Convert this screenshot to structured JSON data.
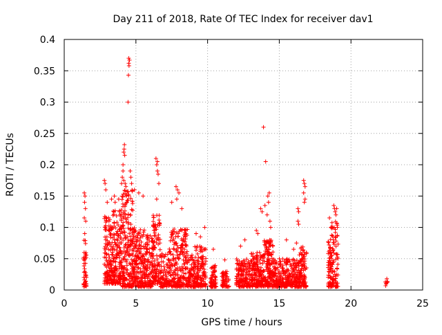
{
  "chart_data": {
    "type": "scatter",
    "title": "Day 211 of 2018, Rate Of TEC Index for receiver dav1",
    "xlabel": "GPS time / hours",
    "ylabel": "ROTI / TECUs",
    "xlim": [
      0,
      25
    ],
    "ylim": [
      0,
      0.4
    ],
    "x_ticks": [
      "0",
      "5",
      "10",
      "15",
      "20",
      "25"
    ],
    "y_ticks": [
      "0",
      "0.05",
      "0.1",
      "0.15",
      "0.2",
      "0.25",
      "0.3",
      "0.35",
      "0.4"
    ],
    "grid": true,
    "marker": "+",
    "colors": {
      "points": "#ff0000",
      "grid": "#a0a0a0",
      "axis": "#000000"
    },
    "clusters": [
      {
        "x": [
          1.35,
          1.55
        ],
        "ymin": 0.005,
        "ymax": 0.08,
        "count": 40
      },
      {
        "x": [
          2.8,
          3.4
        ],
        "ymin": 0.01,
        "ymax": 0.12,
        "count": 140
      },
      {
        "x": [
          3.4,
          4.0
        ],
        "ymin": 0.01,
        "ymax": 0.13,
        "count": 150
      },
      {
        "x": [
          4.0,
          4.8
        ],
        "ymin": 0.005,
        "ymax": 0.16,
        "count": 210
      },
      {
        "x": [
          4.8,
          5.6
        ],
        "ymin": 0.005,
        "ymax": 0.1,
        "count": 170
      },
      {
        "x": [
          5.6,
          6.2
        ],
        "ymin": 0.005,
        "ymax": 0.09,
        "count": 120
      },
      {
        "x": [
          6.2,
          6.7
        ],
        "ymin": 0.01,
        "ymax": 0.12,
        "count": 100
      },
      {
        "x": [
          6.7,
          7.3
        ],
        "ymin": 0.005,
        "ymax": 0.06,
        "count": 80
      },
      {
        "x": [
          7.3,
          8.6
        ],
        "ymin": 0.005,
        "ymax": 0.1,
        "count": 230
      },
      {
        "x": [
          8.6,
          9.0
        ],
        "ymin": 0.005,
        "ymax": 0.06,
        "count": 60
      },
      {
        "x": [
          9.0,
          9.9
        ],
        "ymin": 0.005,
        "ymax": 0.07,
        "count": 150
      },
      {
        "x": [
          10.2,
          10.6
        ],
        "ymin": 0.005,
        "ymax": 0.04,
        "count": 60
      },
      {
        "x": [
          11.0,
          11.5
        ],
        "ymin": 0.005,
        "ymax": 0.03,
        "count": 50
      },
      {
        "x": [
          12.0,
          13.0
        ],
        "ymin": 0.005,
        "ymax": 0.05,
        "count": 150
      },
      {
        "x": [
          13.0,
          13.9
        ],
        "ymin": 0.005,
        "ymax": 0.06,
        "count": 160
      },
      {
        "x": [
          13.9,
          14.6
        ],
        "ymin": 0.005,
        "ymax": 0.08,
        "count": 150
      },
      {
        "x": [
          14.6,
          15.6
        ],
        "ymin": 0.005,
        "ymax": 0.05,
        "count": 160
      },
      {
        "x": [
          15.6,
          16.4
        ],
        "ymin": 0.005,
        "ymax": 0.05,
        "count": 120
      },
      {
        "x": [
          16.4,
          16.9
        ],
        "ymin": 0.005,
        "ymax": 0.07,
        "count": 90
      },
      {
        "x": [
          18.4,
          18.6
        ],
        "ymin": 0.005,
        "ymax": 0.09,
        "count": 50
      },
      {
        "x": [
          18.6,
          19.1
        ],
        "ymin": 0.005,
        "ymax": 0.11,
        "count": 90
      },
      {
        "x": [
          22.4,
          22.6
        ],
        "ymin": 0.005,
        "ymax": 0.014,
        "count": 6
      }
    ],
    "points": [
      [
        1.4,
        0.155
      ],
      [
        1.45,
        0.15
      ],
      [
        1.42,
        0.14
      ],
      [
        1.48,
        0.13
      ],
      [
        1.4,
        0.115
      ],
      [
        1.5,
        0.11
      ],
      [
        1.43,
        0.09
      ],
      [
        2.8,
        0.175
      ],
      [
        2.85,
        0.17
      ],
      [
        2.9,
        0.16
      ],
      [
        3.0,
        0.14
      ],
      [
        3.3,
        0.145
      ],
      [
        3.5,
        0.15
      ],
      [
        3.55,
        0.14
      ],
      [
        3.8,
        0.145
      ],
      [
        4.0,
        0.17
      ],
      [
        4.05,
        0.18
      ],
      [
        4.1,
        0.2
      ],
      [
        4.15,
        0.22
      ],
      [
        4.2,
        0.232
      ],
      [
        4.18,
        0.225
      ],
      [
        4.22,
        0.215
      ],
      [
        4.1,
        0.19
      ],
      [
        4.15,
        0.175
      ],
      [
        4.25,
        0.17
      ],
      [
        4.3,
        0.165
      ],
      [
        4.5,
        0.37
      ],
      [
        4.55,
        0.367
      ],
      [
        4.5,
        0.362
      ],
      [
        4.52,
        0.358
      ],
      [
        4.48,
        0.343
      ],
      [
        4.45,
        0.3
      ],
      [
        4.6,
        0.19
      ],
      [
        4.65,
        0.18
      ],
      [
        4.7,
        0.17
      ],
      [
        4.9,
        0.16
      ],
      [
        5.2,
        0.155
      ],
      [
        5.5,
        0.15
      ],
      [
        6.4,
        0.21
      ],
      [
        6.5,
        0.205
      ],
      [
        6.45,
        0.2
      ],
      [
        6.5,
        0.19
      ],
      [
        6.55,
        0.185
      ],
      [
        6.6,
        0.17
      ],
      [
        6.45,
        0.145
      ],
      [
        7.5,
        0.14
      ],
      [
        7.8,
        0.165
      ],
      [
        7.9,
        0.16
      ],
      [
        8.0,
        0.155
      ],
      [
        7.85,
        0.145
      ],
      [
        8.2,
        0.13
      ],
      [
        9.2,
        0.09
      ],
      [
        9.5,
        0.085
      ],
      [
        9.8,
        0.1
      ],
      [
        10.4,
        0.065
      ],
      [
        11.2,
        0.048
      ],
      [
        12.3,
        0.07
      ],
      [
        12.6,
        0.08
      ],
      [
        13.4,
        0.095
      ],
      [
        13.5,
        0.09
      ],
      [
        13.9,
        0.26
      ],
      [
        14.05,
        0.205
      ],
      [
        13.7,
        0.13
      ],
      [
        13.8,
        0.125
      ],
      [
        14.0,
        0.135
      ],
      [
        14.2,
        0.15
      ],
      [
        14.3,
        0.155
      ],
      [
        14.25,
        0.14
      ],
      [
        14.15,
        0.12
      ],
      [
        14.35,
        0.11
      ],
      [
        14.4,
        0.1
      ],
      [
        15.5,
        0.08
      ],
      [
        16.0,
        0.065
      ],
      [
        16.2,
        0.075
      ],
      [
        16.3,
        0.13
      ],
      [
        16.35,
        0.125
      ],
      [
        16.3,
        0.11
      ],
      [
        16.35,
        0.105
      ],
      [
        16.7,
        0.175
      ],
      [
        16.75,
        0.17
      ],
      [
        16.8,
        0.165
      ],
      [
        16.7,
        0.155
      ],
      [
        16.8,
        0.145
      ],
      [
        16.75,
        0.14
      ],
      [
        18.5,
        0.115
      ],
      [
        18.6,
        0.1
      ],
      [
        18.8,
        0.135
      ],
      [
        18.85,
        0.13
      ],
      [
        18.9,
        0.125
      ],
      [
        19.0,
        0.13
      ],
      [
        18.95,
        0.12
      ],
      [
        22.5,
        0.018
      ],
      [
        22.5,
        0.013
      ]
    ]
  }
}
